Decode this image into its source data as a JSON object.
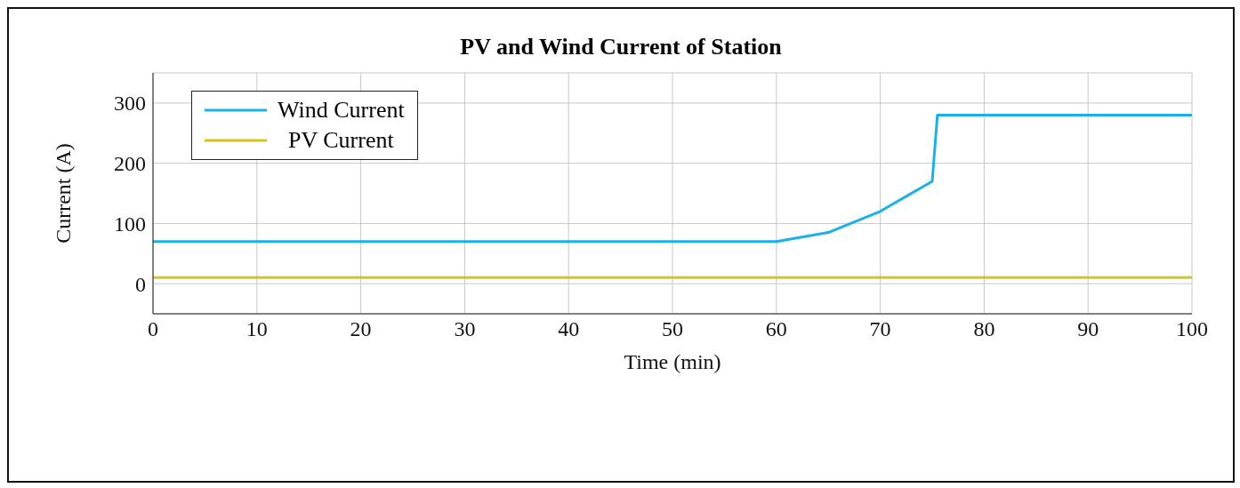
{
  "chart_data": {
    "type": "line",
    "title": "PV and Wind Current of Station",
    "xlabel": "Time (min)",
    "ylabel": "Current (A)",
    "series": [
      {
        "name": "Wind Current",
        "color": "#1ab0e8",
        "x": [
          0,
          60,
          65,
          70,
          75,
          75.5,
          100
        ],
        "values": [
          70,
          70,
          85,
          120,
          170,
          280,
          280
        ]
      },
      {
        "name": "PV Current",
        "color": "#d4c41c",
        "x": [
          0,
          100
        ],
        "values": [
          10,
          10
        ]
      }
    ],
    "xlim": [
      0,
      100
    ],
    "xticks": [
      0,
      10,
      20,
      30,
      40,
      50,
      60,
      70,
      80,
      90,
      100
    ],
    "ylim": [
      -50,
      350
    ],
    "yticks": [
      0,
      100,
      200,
      300
    ],
    "grid": true,
    "legend": "top left",
    "marker": "none",
    "line_style": "solid"
  }
}
